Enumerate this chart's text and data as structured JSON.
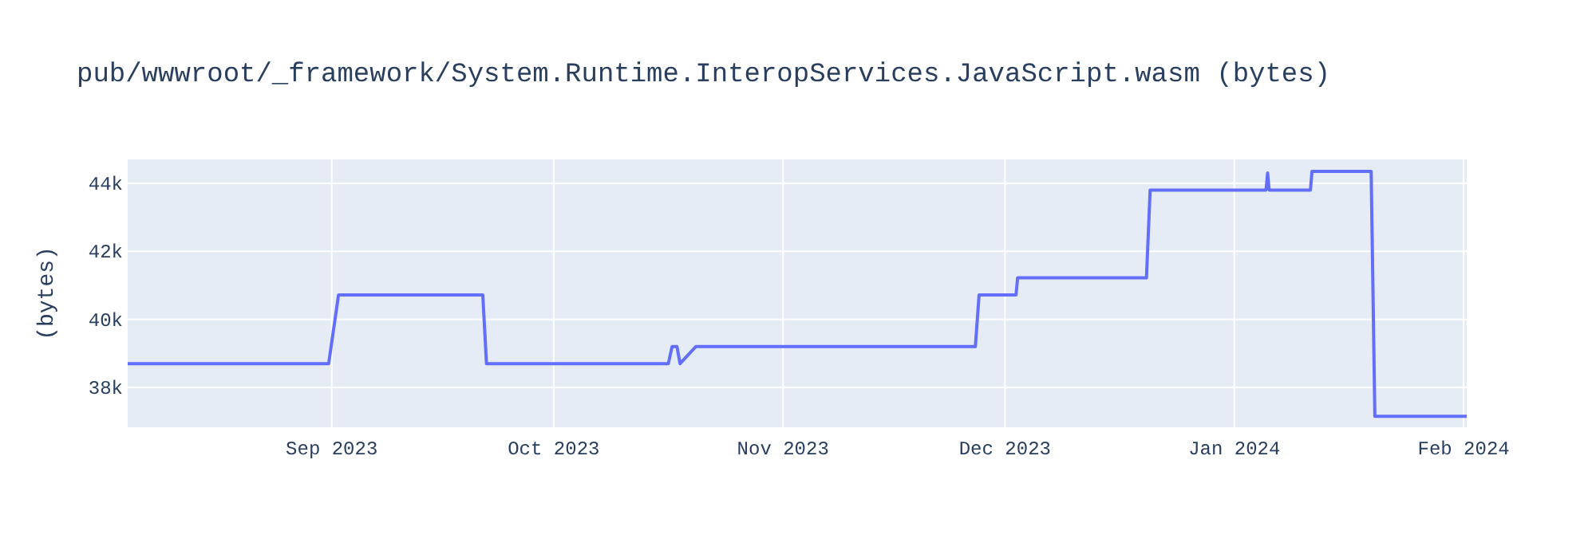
{
  "chart_data": {
    "type": "line",
    "title": "pub/wwwroot/_framework/System.Runtime.InteropServices.JavaScript.wasm (bytes)",
    "ylabel": "(bytes)",
    "x": [
      "2023-08-04T10:00",
      "2023-08-31T14:00",
      "2023-09-01T22:00",
      "2023-09-21T10:00",
      "2023-09-21T22:00",
      "2023-10-16T12:00",
      "2023-10-17T00:00",
      "2023-10-17T16:00",
      "2023-10-18T02:00",
      "2023-10-20T05:00",
      "2023-11-27T00:00",
      "2023-11-27T12:00",
      "2023-12-02T12:00",
      "2023-12-02T17:00",
      "2023-12-20T03:00",
      "2023-12-20T15:00",
      "2024-01-05T07:00",
      "2024-01-05T12:00",
      "2024-01-05T17:00",
      "2024-01-11T07:00",
      "2024-01-11T12:00",
      "2024-01-19T12:00",
      "2024-01-20T00:00",
      "2024-02-01T10:00"
    ],
    "series": [
      {
        "color": "#636efa",
        "values": [
          38700,
          38700,
          40720,
          40720,
          38700,
          38700,
          39200,
          39200,
          38700,
          39200,
          39200,
          40720,
          40720,
          41220,
          41220,
          43800,
          43800,
          44300,
          43800,
          43800,
          44350,
          44350,
          37150,
          37150
        ]
      }
    ],
    "xlim": [
      "2023-08-04T10:00",
      "2024-02-01T10:00"
    ],
    "xticks": [
      {
        "value": "2023-09-01",
        "label": "Sep 2023"
      },
      {
        "value": "2023-10-01",
        "label": "Oct 2023"
      },
      {
        "value": "2023-11-01",
        "label": "Nov 2023"
      },
      {
        "value": "2023-12-01",
        "label": "Dec 2023"
      },
      {
        "value": "2024-01-01",
        "label": "Jan 2024"
      },
      {
        "value": "2024-02-01",
        "label": "Feb 2024"
      }
    ],
    "ylim": [
      36830,
      44700
    ],
    "yticks": [
      {
        "value": 38000,
        "label": "38k"
      },
      {
        "value": 40000,
        "label": "40k"
      },
      {
        "value": 42000,
        "label": "42k"
      },
      {
        "value": 44000,
        "label": "44k"
      }
    ],
    "grid": true
  }
}
